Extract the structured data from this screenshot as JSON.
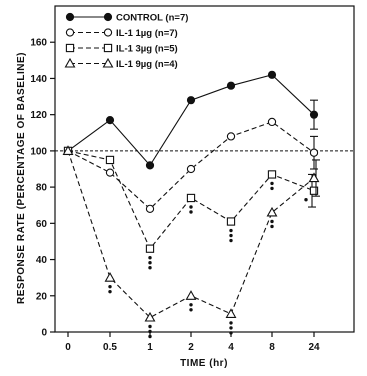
{
  "chart_data": {
    "type": "line",
    "x": [
      "0",
      "0.5",
      "1",
      "2",
      "4",
      "8",
      "24"
    ],
    "xlabel": "TIME (hr)",
    "ylabel": "RESPONSE RATE (PERCENTAGE OF BASELINE)",
    "ylim": [
      0,
      180
    ],
    "yticks": [
      "0",
      "20",
      "40",
      "60",
      "80",
      "100",
      "120",
      "140",
      "160"
    ],
    "baseline": 100,
    "legend_position": "top-left",
    "series": [
      {
        "name": "CONTROL (n=7)",
        "marker": "filled-circle",
        "line": "solid",
        "values": [
          100,
          117,
          92,
          128,
          136,
          142,
          120
        ],
        "error_last": 8
      },
      {
        "name": "IL-1 1µg (n=7)",
        "marker": "open-circle",
        "line": "dashed",
        "values": [
          100,
          88,
          68,
          90,
          108,
          116,
          99
        ],
        "error_last": 9
      },
      {
        "name": "IL-1 3µg (n=5)",
        "marker": "open-square",
        "line": "dashed",
        "values": [
          100,
          95,
          46,
          74,
          61,
          87,
          78
        ],
        "error_last": 9
      },
      {
        "name": "IL-1 9µg (n=4)",
        "marker": "open-triangle",
        "line": "dashed",
        "values": [
          100,
          30,
          8,
          20,
          10,
          66,
          85
        ],
        "error_last": 10
      }
    ],
    "significance_marks": [
      {
        "series": 2,
        "x_index": 2,
        "count": 3
      },
      {
        "series": 2,
        "x_index": 3,
        "count": 2
      },
      {
        "series": 2,
        "x_index": 4,
        "count": 3
      },
      {
        "series": 2,
        "x_index": 5,
        "count": 2
      },
      {
        "series": 2,
        "x_index": 6,
        "count": 1
      },
      {
        "series": 3,
        "x_index": 1,
        "count": 2
      },
      {
        "series": 3,
        "x_index": 2,
        "count": 3
      },
      {
        "series": 3,
        "x_index": 3,
        "count": 2
      },
      {
        "series": 3,
        "x_index": 4,
        "count": 3
      },
      {
        "series": 3,
        "x_index": 5,
        "count": 2
      }
    ]
  }
}
